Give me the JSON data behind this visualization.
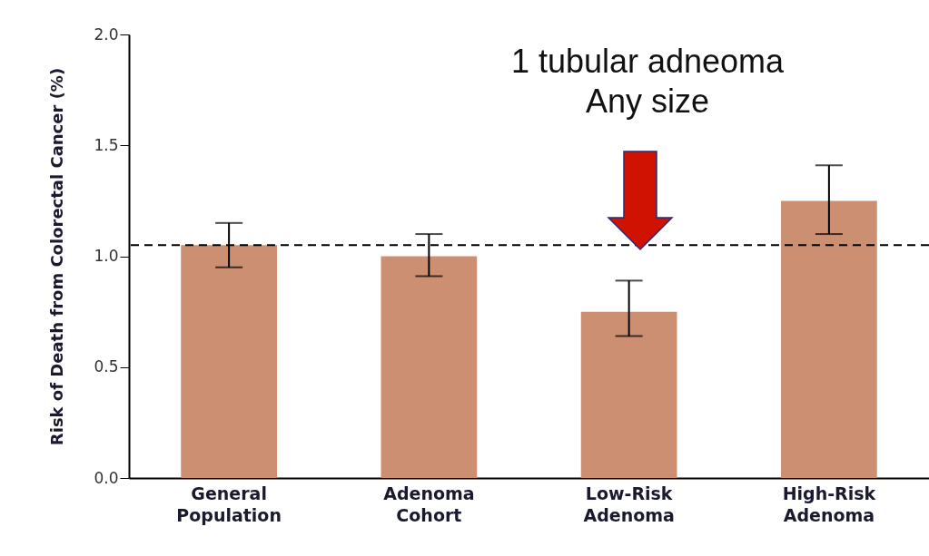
{
  "chart_data": {
    "type": "bar",
    "ylabel": "Risk of Death from Colorectal Cancer (%)",
    "categories": [
      "General Population",
      "Adenoma Cohort",
      "Low-Risk Adenoma",
      "High-Risk Adenoma"
    ],
    "values": [
      1.05,
      1.0,
      0.75,
      1.25
    ],
    "color": "#cd8f72",
    "errors": [
      [
        0.95,
        1.15
      ],
      [
        0.91,
        1.1
      ],
      [
        0.64,
        0.89
      ],
      [
        1.1,
        1.41
      ]
    ],
    "ylim": [
      0,
      2
    ],
    "yticks": [
      {
        "value": 0,
        "label": "0.0"
      },
      0.5,
      {
        "value": 1,
        "label": "1.0"
      },
      1.5,
      {
        "value": 2,
        "label": "2.0"
      }
    ],
    "grid": false,
    "ref_lines": [
      {
        "axis": "y",
        "value": 1.05,
        "line_style": "dashed",
        "color": "#000000"
      }
    ],
    "annotations": [
      "1 tubular adneoma\nAny size"
    ]
  }
}
